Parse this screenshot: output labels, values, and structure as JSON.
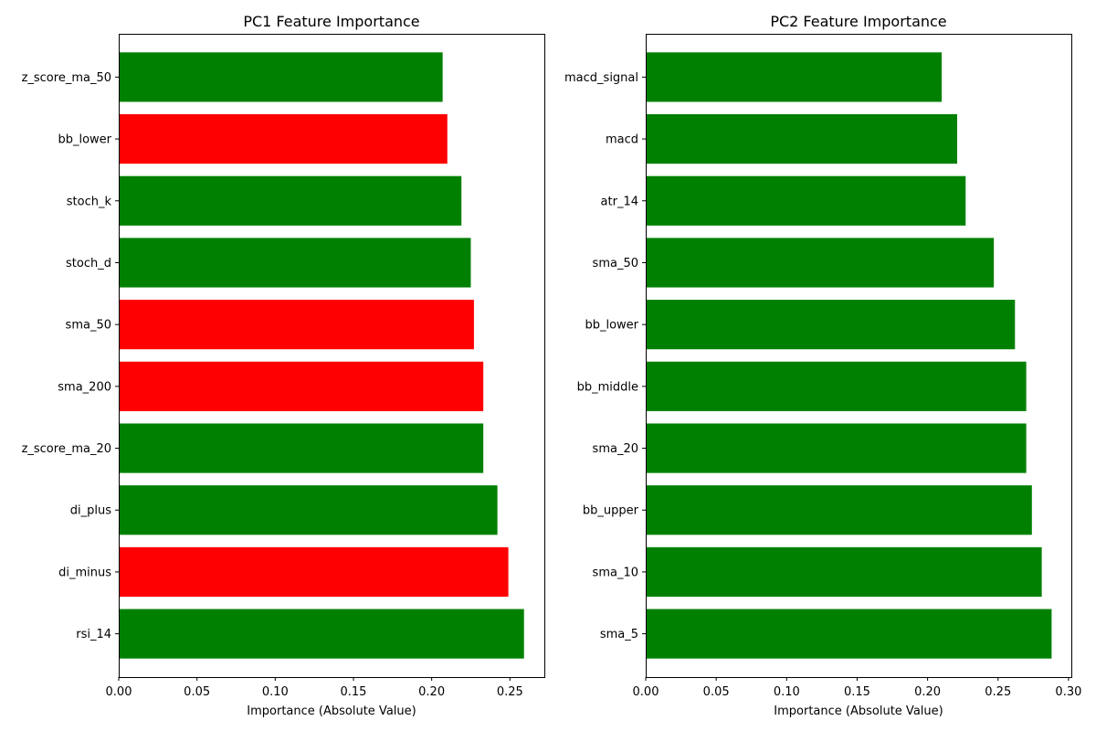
{
  "chart_data": [
    {
      "type": "bar",
      "orientation": "horizontal",
      "title": "PC1 Feature Importance",
      "xlabel": "Importance (Absolute Value)",
      "ylabel": "",
      "xlim": [
        0,
        0.272
      ],
      "xticks": [
        "0.00",
        "0.05",
        "0.10",
        "0.15",
        "0.20",
        "0.25"
      ],
      "categories": [
        "rsi_14",
        "di_minus",
        "di_plus",
        "z_score_ma_20",
        "sma_200",
        "sma_50",
        "stoch_d",
        "stoch_k",
        "bb_lower",
        "z_score_ma_50"
      ],
      "values": [
        0.259,
        0.249,
        0.242,
        0.233,
        0.233,
        0.227,
        0.225,
        0.219,
        0.21,
        0.207
      ],
      "colors": [
        "#008000",
        "#ff0000",
        "#008000",
        "#008000",
        "#ff0000",
        "#ff0000",
        "#008000",
        "#008000",
        "#ff0000",
        "#008000"
      ],
      "grid": false,
      "legend": "none"
    },
    {
      "type": "bar",
      "orientation": "horizontal",
      "title": "PC2 Feature Importance",
      "xlabel": "Importance (Absolute Value)",
      "ylabel": "",
      "xlim": [
        0,
        0.302
      ],
      "xticks": [
        "0.00",
        "0.05",
        "0.10",
        "0.15",
        "0.20",
        "0.25",
        "0.30"
      ],
      "categories": [
        "sma_5",
        "sma_10",
        "bb_upper",
        "sma_20",
        "bb_middle",
        "bb_lower",
        "sma_50",
        "atr_14",
        "macd",
        "macd_signal"
      ],
      "values": [
        0.288,
        0.281,
        0.274,
        0.27,
        0.27,
        0.262,
        0.247,
        0.227,
        0.221,
        0.21
      ],
      "colors": [
        "#008000",
        "#008000",
        "#008000",
        "#008000",
        "#008000",
        "#008000",
        "#008000",
        "#008000",
        "#008000",
        "#008000"
      ],
      "grid": false,
      "legend": "none"
    }
  ]
}
